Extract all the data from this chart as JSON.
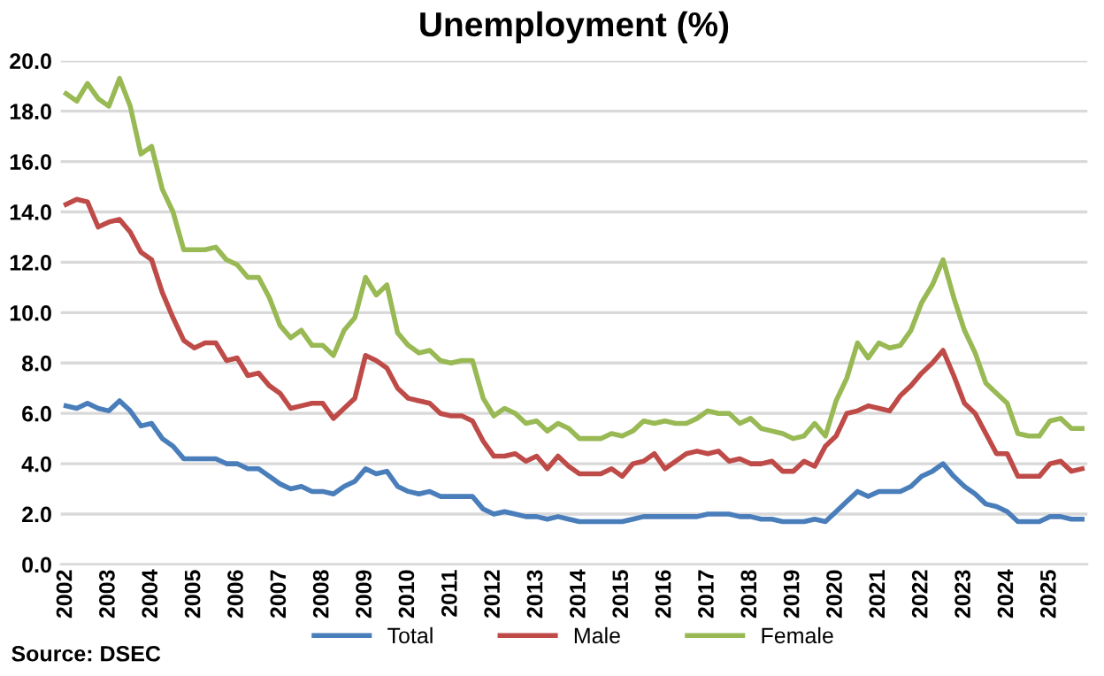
{
  "chart_data": {
    "type": "line",
    "title": "Unemployment (%)",
    "categories": [
      "2002",
      null,
      null,
      null,
      "2003",
      null,
      null,
      null,
      "2004",
      null,
      null,
      null,
      "2005",
      null,
      null,
      null,
      "2006",
      null,
      null,
      null,
      "2007",
      null,
      null,
      null,
      "2008",
      null,
      null,
      null,
      "2009",
      null,
      null,
      null,
      "2010",
      null,
      null,
      null,
      "2011",
      null,
      null,
      null,
      "2012",
      null,
      null,
      null,
      "2013",
      null,
      null,
      null,
      "2014",
      null,
      null,
      null,
      "2015",
      null,
      null,
      null,
      "2016",
      null,
      null,
      null,
      "2017",
      null,
      null,
      null,
      "2018",
      null,
      null,
      null,
      "2019",
      null,
      null,
      null,
      "2020",
      null,
      null,
      null,
      "2021",
      null,
      null,
      null,
      "2022",
      null,
      null,
      null,
      "2023",
      null,
      null,
      null,
      "2024",
      null,
      null,
      null,
      "2025",
      null,
      null,
      null
    ],
    "series": [
      {
        "name": "Total",
        "color": "#4a7ebb",
        "values": [
          6.3,
          6.2,
          6.4,
          6.2,
          6.1,
          6.5,
          6.1,
          5.5,
          5.6,
          5.0,
          4.7,
          4.2,
          4.2,
          4.2,
          4.2,
          4.0,
          4.0,
          3.8,
          3.8,
          3.5,
          3.2,
          3.0,
          3.1,
          2.9,
          2.9,
          2.8,
          3.1,
          3.3,
          3.8,
          3.6,
          3.7,
          3.1,
          2.9,
          2.8,
          2.9,
          2.7,
          2.7,
          2.7,
          2.7,
          2.2,
          2.0,
          2.1,
          2.0,
          1.9,
          1.9,
          1.8,
          1.9,
          1.8,
          1.7,
          1.7,
          1.7,
          1.7,
          1.7,
          1.8,
          1.9,
          1.9,
          1.9,
          1.9,
          1.9,
          1.9,
          2.0,
          2.0,
          2.0,
          1.9,
          1.9,
          1.8,
          1.8,
          1.7,
          1.7,
          1.7,
          1.8,
          1.7,
          2.1,
          2.5,
          2.9,
          2.7,
          2.9,
          2.9,
          2.9,
          3.1,
          3.5,
          3.7,
          4.0,
          3.5,
          3.1,
          2.8,
          2.4,
          2.3,
          2.1,
          1.7,
          1.7,
          1.7,
          1.9,
          1.9,
          1.8,
          1.8
        ]
      },
      {
        "name": "Male",
        "color": "#be4b48",
        "values": [
          14.3,
          14.5,
          14.4,
          13.4,
          13.6,
          13.7,
          13.2,
          12.4,
          12.1,
          10.8,
          9.8,
          8.9,
          8.6,
          8.8,
          8.8,
          8.1,
          8.2,
          7.5,
          7.6,
          7.1,
          6.8,
          6.2,
          6.3,
          6.4,
          6.4,
          5.8,
          6.2,
          6.6,
          8.3,
          8.1,
          7.8,
          7.0,
          6.6,
          6.5,
          6.4,
          6.0,
          5.9,
          5.9,
          5.7,
          4.9,
          4.3,
          4.3,
          4.4,
          4.1,
          4.3,
          3.8,
          4.3,
          3.9,
          3.6,
          3.6,
          3.6,
          3.8,
          3.5,
          4.0,
          4.1,
          4.4,
          3.8,
          4.1,
          4.4,
          4.5,
          4.4,
          4.5,
          4.1,
          4.2,
          4.0,
          4.0,
          4.1,
          3.7,
          3.7,
          4.1,
          3.9,
          4.7,
          5.1,
          6.0,
          6.1,
          6.3,
          6.2,
          6.1,
          6.7,
          7.1,
          7.6,
          8.0,
          8.5,
          7.5,
          6.4,
          6.0,
          5.2,
          4.4,
          4.4,
          3.5,
          3.5,
          3.5,
          4.0,
          4.1,
          3.7,
          3.8
        ]
      },
      {
        "name": "Female",
        "color": "#98b954",
        "values": [
          18.7,
          18.4,
          19.1,
          18.5,
          18.2,
          19.3,
          18.2,
          16.3,
          16.6,
          14.9,
          14.0,
          12.5,
          12.5,
          12.5,
          12.6,
          12.1,
          11.9,
          11.4,
          11.4,
          10.6,
          9.5,
          9.0,
          9.3,
          8.7,
          8.7,
          8.3,
          9.3,
          9.8,
          11.4,
          10.7,
          11.1,
          9.2,
          8.7,
          8.4,
          8.5,
          8.1,
          8.0,
          8.1,
          8.1,
          6.6,
          5.9,
          6.2,
          6.0,
          5.6,
          5.7,
          5.3,
          5.6,
          5.4,
          5.0,
          5.0,
          5.0,
          5.2,
          5.1,
          5.3,
          5.7,
          5.6,
          5.7,
          5.6,
          5.6,
          5.8,
          6.1,
          6.0,
          6.0,
          5.6,
          5.8,
          5.4,
          5.3,
          5.2,
          5.0,
          5.1,
          5.6,
          5.1,
          6.5,
          7.4,
          8.8,
          8.2,
          8.8,
          8.6,
          8.7,
          9.3,
          10.4,
          11.1,
          12.1,
          10.6,
          9.3,
          8.4,
          7.2,
          6.8,
          6.4,
          5.2,
          5.1,
          5.1,
          5.7,
          5.8,
          5.4,
          5.4
        ]
      }
    ],
    "ylim": [
      0,
      20
    ],
    "yticks": [
      {
        "value": 0,
        "label": "0.0"
      },
      {
        "value": 2,
        "label": "2.0"
      },
      {
        "value": 4,
        "label": "4.0"
      },
      {
        "value": 6,
        "label": "6.0"
      },
      {
        "value": 8,
        "label": "8.0"
      },
      {
        "value": 10,
        "label": "10.0"
      },
      {
        "value": 12,
        "label": "12.0"
      },
      {
        "value": 14,
        "label": "14.0"
      },
      {
        "value": 16,
        "label": "16.0"
      },
      {
        "value": 18,
        "label": "18.0"
      },
      {
        "value": 20,
        "label": "20.0"
      }
    ],
    "grid": "y",
    "legend": "bottom",
    "marker": "none",
    "line_style": "solid",
    "annotations": [
      "Source: DSEC"
    ]
  }
}
